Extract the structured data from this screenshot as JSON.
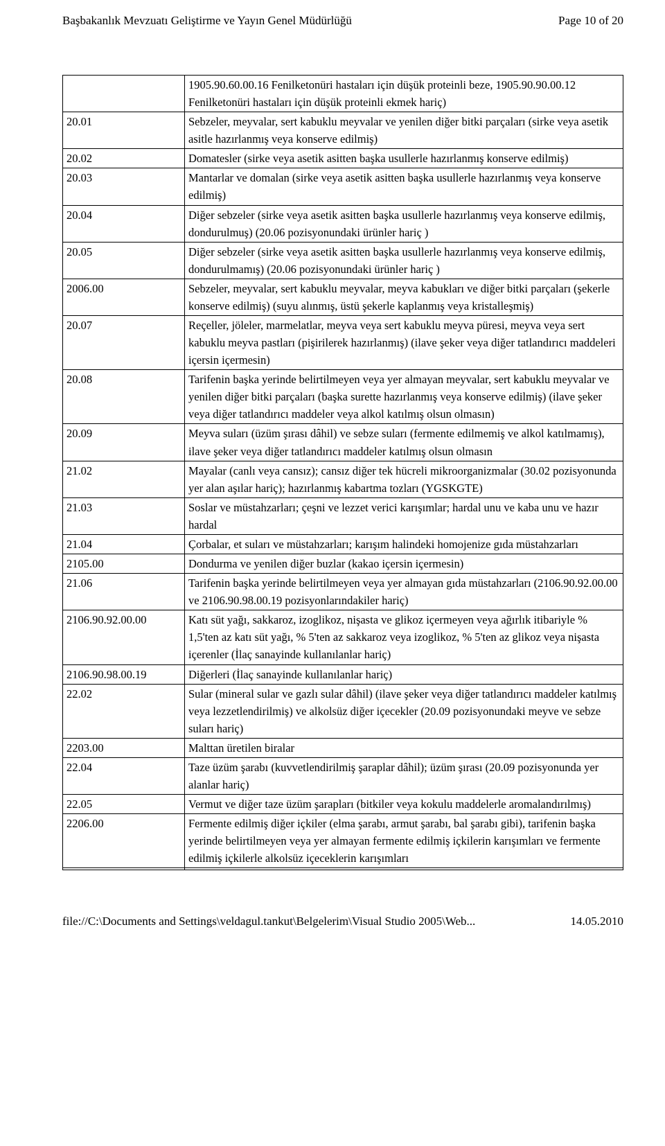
{
  "header": {
    "left": "Başbakanlık Mevzuatı Geliştirme ve Yayın Genel Müdürlüğü",
    "right": "Page 10 of 20"
  },
  "footer": {
    "left": "file://C:\\Documents and Settings\\veldagul.tankut\\Belgelerim\\Visual Studio 2005\\Web...",
    "right": "14.05.2010"
  },
  "rows": [
    {
      "code": "",
      "text": "1905.90.60.00.16 Fenilketonüri hastaları için düşük proteinli beze, 1905.90.90.00.12 Fenilketonüri hastaları için düşük proteinli ekmek hariç)"
    },
    {
      "code": "20.01",
      "text": "Sebzeler, meyvalar, sert kabuklu meyvalar ve yenilen diğer bitki parçaları (sirke veya asetik asitle hazırlanmış veya konserve edilmiş)"
    },
    {
      "code": "20.02",
      "text": "Domatesler (sirke veya asetik asitten başka usullerle hazırlanmış konserve edilmiş)"
    },
    {
      "code": "20.03",
      "text": "Mantarlar ve domalan (sirke veya asetik asitten başka usullerle hazırlanmış veya konserve edilmiş)"
    },
    {
      "code": "20.04",
      "text": "Diğer sebzeler (sirke veya asetik asitten başka usullerle hazırlanmış veya konserve edilmiş, dondurulmuş) (20.06 pozisyonundaki ürünler hariç )"
    },
    {
      "code": "20.05",
      "text": "Diğer sebzeler (sirke veya asetik asitten başka usullerle hazırlanmış veya konserve edilmiş, dondurulmamış) (20.06 pozisyonundaki ürünler hariç )"
    },
    {
      "code": "2006.00",
      "text": "Sebzeler, meyvalar, sert kabuklu meyvalar, meyva kabukları ve diğer bitki parçaları (şekerle konserve edilmiş) (suyu alınmış, üstü şekerle kaplanmış veya kristalleşmiş)"
    },
    {
      "code": "20.07",
      "text": "Reçeller, jöleler, marmelatlar, meyva veya sert kabuklu meyva püresi, meyva veya sert kabuklu meyva pastları (pişirilerek hazırlanmış) (ilave şeker veya diğer tatlandırıcı maddeleri içersin içermesin)"
    },
    {
      "code": "20.08",
      "text": "Tarifenin başka yerinde belirtilmeyen veya yer almayan meyvalar, sert kabuklu meyvalar ve yenilen diğer bitki parçaları (başka surette hazırlanmış veya konserve edilmiş) (ilave şeker veya diğer tatlandırıcı maddeler veya alkol katılmış olsun olmasın)"
    },
    {
      "code": "20.09",
      "text": "Meyva suları (üzüm şırası dâhil) ve sebze suları (fermente edilmemiş ve alkol katılmamış), ilave şeker veya diğer tatlandırıcı maddeler katılmış olsun olmasın"
    },
    {
      "code": "21.02",
      "text": "Mayalar (canlı veya cansız); cansız diğer tek hücreli mikroorganizmalar (30.02 pozisyonunda yer alan aşılar hariç); hazırlanmış kabartma tozları (YGSKGTE)"
    },
    {
      "code": "21.03",
      "text": "Soslar ve müstahzarları; çeşni ve lezzet verici karışımlar; hardal unu ve kaba unu ve hazır hardal"
    },
    {
      "code": "21.04",
      "text": "Çorbalar, et suları ve müstahzarları; karışım halindeki homojenize gıda müstahzarları"
    },
    {
      "code": "2105.00",
      "text": "Dondurma ve yenilen diğer buzlar (kakao içersin içermesin)"
    },
    {
      "code": "21.06",
      "text": "Tarifenin başka yerinde belirtilmeyen veya yer almayan gıda müstahzarları (2106.90.92.00.00 ve 2106.90.98.00.19 pozisyonlarındakiler hariç)"
    },
    {
      "code": "2106.90.92.00.00",
      "text": "Katı süt yağı, sakkaroz, izoglikoz, nişasta ve glikoz içermeyen veya ağırlık itibariyle % 1,5'ten az katı süt yağı, % 5'ten az sakkaroz veya izoglikoz, % 5'ten az glikoz veya nişasta içerenler (İlaç sanayinde kullanılanlar hariç)"
    },
    {
      "code": "2106.90.98.00.19",
      "text": "Diğerleri (İlaç sanayinde kullanılanlar hariç)"
    },
    {
      "code": "22.02",
      "text": "Sular (mineral sular ve gazlı sular dâhil) (ilave şeker veya diğer tatlandırıcı maddeler katılmış veya lezzetlendirilmiş) ve alkolsüz diğer içecekler (20.09 pozisyonundaki meyve ve sebze suları hariç)"
    },
    {
      "code": "2203.00",
      "text": "Malttan üretilen biralar"
    },
    {
      "code": "22.04",
      "text": "Taze üzüm şarabı (kuvvetlendirilmiş şaraplar dâhil); üzüm şırası (20.09 pozisyonunda yer alanlar hariç)"
    },
    {
      "code": "22.05",
      "text": "Vermut ve diğer taze üzüm şarapları (bitkiler veya kokulu maddelerle aromalandırılmış)"
    },
    {
      "code": "2206.00",
      "text": "Fermente edilmiş diğer içkiler (elma şarabı, armut şarabı, bal şarabı gibi), tarifenin başka yerinde belirtilmeyen veya yer almayan fermente edilmiş içkilerin karışımları ve fermente edilmiş içkilerle alkolsüz içeceklerin karışımları"
    },
    {
      "code": "",
      "text": ""
    }
  ]
}
